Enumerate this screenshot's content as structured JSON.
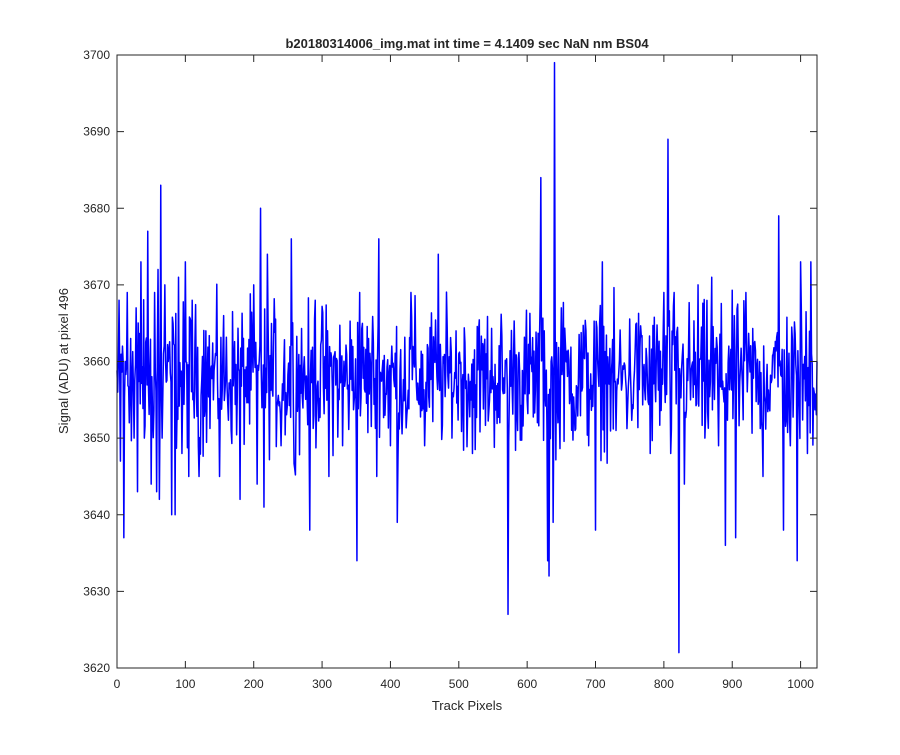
{
  "figure": {
    "background": "#ffffff"
  },
  "chart_data": {
    "type": "line",
    "title": "b20180314006_img.mat int time = 4.1409 sec  NaN nm BS04",
    "xlabel": "Track Pixels",
    "ylabel": "Signal (ADU) at pixel 496",
    "xlim": [
      0,
      1024
    ],
    "ylim": [
      3620,
      3700
    ],
    "xticks": [
      0,
      100,
      200,
      300,
      400,
      500,
      600,
      700,
      800,
      900,
      1000
    ],
    "yticks": [
      3620,
      3630,
      3640,
      3650,
      3660,
      3670,
      3680,
      3690,
      3700
    ],
    "grid": false,
    "legend": null,
    "series": [
      {
        "color": "#0000ff",
        "x_start": 1,
        "x_step": 1,
        "noise": {
          "center": 3658,
          "range": [
            3644,
            3671
          ]
        },
        "values": [
          [
            1,
            3656
          ],
          [
            3,
            3668
          ],
          [
            5,
            3647
          ],
          [
            8,
            3662
          ],
          [
            10,
            3637
          ],
          [
            12,
            3660
          ],
          [
            15,
            3669
          ],
          [
            18,
            3652
          ],
          [
            20,
            3663
          ],
          [
            25,
            3650
          ],
          [
            28,
            3667
          ],
          [
            30,
            3643
          ],
          [
            35,
            3673
          ],
          [
            40,
            3650
          ],
          [
            45,
            3677
          ],
          [
            50,
            3644
          ],
          [
            55,
            3669
          ],
          [
            58,
            3643
          ],
          [
            60,
            3672
          ],
          [
            62,
            3642
          ],
          [
            64,
            3683
          ],
          [
            66,
            3650
          ],
          [
            70,
            3670
          ],
          [
            75,
            3660
          ],
          [
            80,
            3640
          ],
          [
            82,
            3665
          ],
          [
            85,
            3640
          ],
          [
            90,
            3671
          ],
          [
            95,
            3648
          ],
          [
            100,
            3673
          ],
          [
            105,
            3645
          ],
          [
            110,
            3668
          ],
          [
            120,
            3645
          ],
          [
            130,
            3664
          ],
          [
            150,
            3645
          ],
          [
            180,
            3642
          ],
          [
            200,
            3670
          ],
          [
            205,
            3644
          ],
          [
            210,
            3680
          ],
          [
            215,
            3641
          ],
          [
            220,
            3674
          ],
          [
            240,
            3649
          ],
          [
            255,
            3676
          ],
          [
            260,
            3646
          ],
          [
            282,
            3638
          ],
          [
            290,
            3668
          ],
          [
            310,
            3645
          ],
          [
            330,
            3649
          ],
          [
            351,
            3634
          ],
          [
            355,
            3669
          ],
          [
            380,
            3645
          ],
          [
            383,
            3676
          ],
          [
            400,
            3649
          ],
          [
            410,
            3639
          ],
          [
            430,
            3669
          ],
          [
            450,
            3649
          ],
          [
            470,
            3674
          ],
          [
            490,
            3650
          ],
          [
            500,
            3661
          ],
          [
            520,
            3648
          ],
          [
            540,
            3661
          ],
          [
            560,
            3652
          ],
          [
            572,
            3627
          ],
          [
            580,
            3660
          ],
          [
            600,
            3655
          ],
          [
            615,
            3652
          ],
          [
            620,
            3684
          ],
          [
            625,
            3664
          ],
          [
            630,
            3634
          ],
          [
            632,
            3632
          ],
          [
            635,
            3660
          ],
          [
            638,
            3639
          ],
          [
            640,
            3699
          ],
          [
            645,
            3652
          ],
          [
            650,
            3667
          ],
          [
            670,
            3651
          ],
          [
            690,
            3649
          ],
          [
            700,
            3638
          ],
          [
            710,
            3673
          ],
          [
            730,
            3651
          ],
          [
            760,
            3665
          ],
          [
            780,
            3648
          ],
          [
            800,
            3669
          ],
          [
            806,
            3689
          ],
          [
            810,
            3648
          ],
          [
            815,
            3669
          ],
          [
            822,
            3622
          ],
          [
            830,
            3644
          ],
          [
            850,
            3670
          ],
          [
            860,
            3650
          ],
          [
            870,
            3671
          ],
          [
            880,
            3649
          ],
          [
            890,
            3636
          ],
          [
            895,
            3662
          ],
          [
            905,
            3637
          ],
          [
            920,
            3669
          ],
          [
            940,
            3660
          ],
          [
            945,
            3645
          ],
          [
            960,
            3661
          ],
          [
            968,
            3679
          ],
          [
            975,
            3638
          ],
          [
            985,
            3649
          ],
          [
            995,
            3634
          ],
          [
            1000,
            3673
          ],
          [
            1010,
            3648
          ],
          [
            1015,
            3673
          ],
          [
            1024,
            3660
          ]
        ]
      }
    ]
  }
}
